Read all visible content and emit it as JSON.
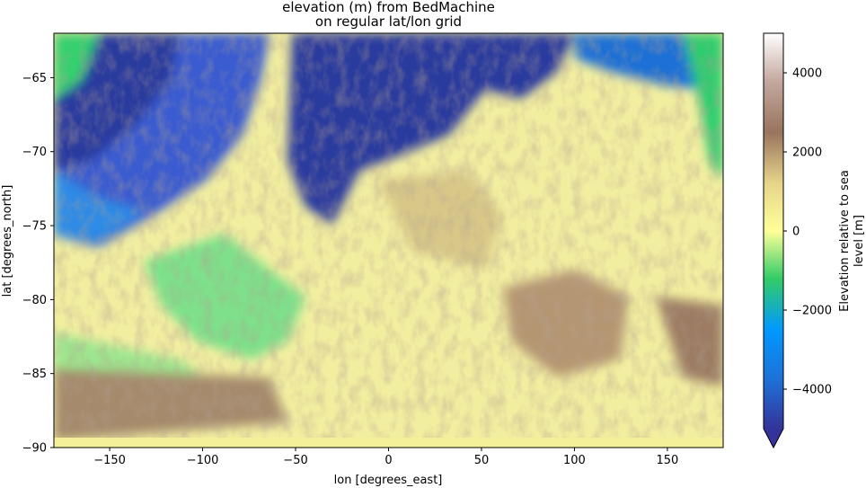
{
  "chart_data": {
    "type": "heatmap",
    "title_line1": "elevation (m) from BedMachine",
    "title_line2": "on regular lat/lon grid",
    "xlabel": "lon [degrees_east]",
    "ylabel": "lat [degrees_north]",
    "xlim": [
      -180,
      180
    ],
    "ylim": [
      -90,
      -62
    ],
    "xticks": [
      -150,
      -100,
      -50,
      0,
      50,
      100,
      150
    ],
    "xtick_labels": [
      "−150",
      "−100",
      "−50",
      "0",
      "50",
      "100",
      "150"
    ],
    "yticks": [
      -65,
      -70,
      -75,
      -80,
      -85,
      -90
    ],
    "ytick_labels": [
      "−65",
      "−70",
      "−75",
      "−80",
      "−85",
      "−90"
    ],
    "colorbar": {
      "label_line1": "Elevation relative to sea",
      "label_line2": "level [m]",
      "range": [
        -5000,
        5000
      ],
      "extend": "min",
      "ticks": [
        4000,
        2000,
        0,
        -2000,
        -4000
      ],
      "tick_labels": [
        "4000",
        "2000",
        "0",
        "−2000",
        "−4000"
      ],
      "colormap": "terrain"
    },
    "colors": {
      "deep_ocean": "#2b3a9e",
      "ocean": "#1e8ee8",
      "shelf": "#3fd27a",
      "lowland": "#f4f09a",
      "highland": "#8a6a58",
      "peaks": "#ffffff"
    }
  }
}
